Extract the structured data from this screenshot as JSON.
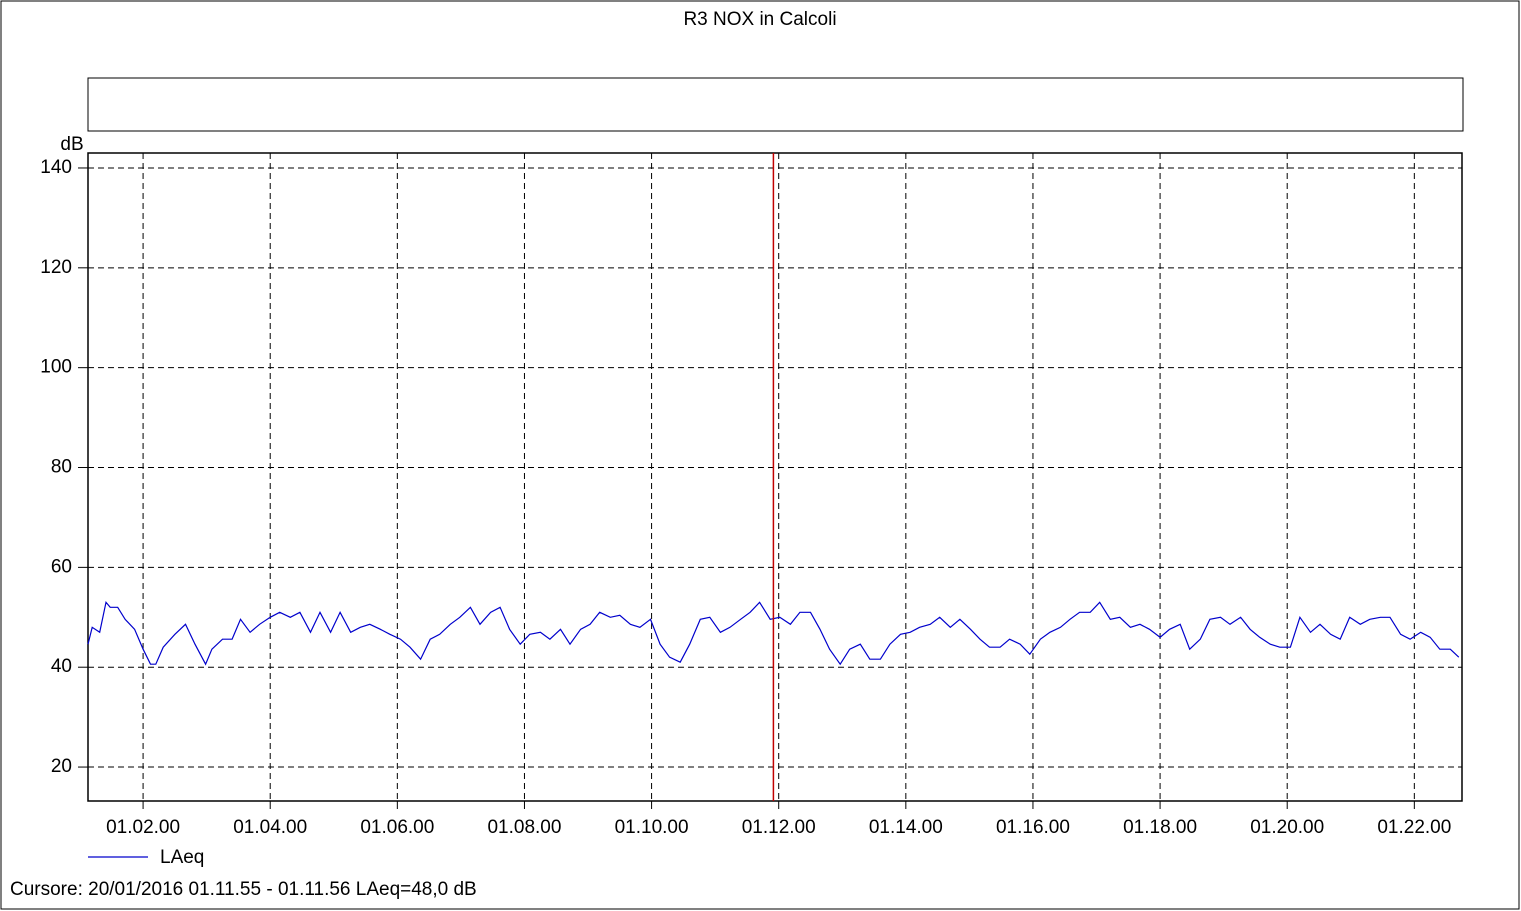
{
  "chart_data": {
    "type": "line",
    "title": "R3 NOX in Calcoli",
    "ylabel": "dB",
    "cursor_text": "Cursore: 20/01/2016 01.11.55 - 01.11.56  LAeq=48,0 dB",
    "cursor_x": 4315,
    "cursor_color": "#c00000",
    "xlim": [
      3668,
      4965
    ],
    "ylim": [
      13.2,
      143
    ],
    "xticks": [
      {
        "value": 3720,
        "label": "01.02.00"
      },
      {
        "value": 3840,
        "label": "01.04.00"
      },
      {
        "value": 3960,
        "label": "01.06.00"
      },
      {
        "value": 4080,
        "label": "01.08.00"
      },
      {
        "value": 4200,
        "label": "01.10.00"
      },
      {
        "value": 4320,
        "label": "01.12.00"
      },
      {
        "value": 4440,
        "label": "01.14.00"
      },
      {
        "value": 4560,
        "label": "01.16.00"
      },
      {
        "value": 4680,
        "label": "01.18.00"
      },
      {
        "value": 4800,
        "label": "01.20.00"
      },
      {
        "value": 4920,
        "label": "01.22.00"
      }
    ],
    "yticks": [
      20,
      40,
      60,
      80,
      100,
      120,
      140
    ],
    "grid": true,
    "x": [
      3668,
      3672,
      3679,
      3685,
      3689,
      3696,
      3703,
      3712,
      3720,
      3727,
      3732,
      3739,
      3750,
      3760,
      3769,
      3779,
      3785,
      3795,
      3804,
      3812,
      3821,
      3830,
      3840,
      3849,
      3859,
      3868,
      3878,
      3887,
      3897,
      3906,
      3916,
      3925,
      3934,
      3944,
      3953,
      3963,
      3972,
      3982,
      3991,
      4000,
      4010,
      4019,
      4029,
      4038,
      4048,
      4057,
      4066,
      4076,
      4085,
      4095,
      4104,
      4114,
      4123,
      4133,
      4142,
      4151,
      4161,
      4170,
      4180,
      4189,
      4199,
      4208,
      4217,
      4227,
      4236,
      4246,
      4255,
      4265,
      4274,
      4284,
      4293,
      4302,
      4312,
      4321,
      4331,
      4340,
      4350,
      4359,
      4368,
      4378,
      4387,
      4397,
      4406,
      4416,
      4425,
      4435,
      4444,
      4453,
      4463,
      4472,
      4482,
      4491,
      4501,
      4510,
      4519,
      4529,
      4538,
      4548,
      4557,
      4567,
      4576,
      4586,
      4595,
      4604,
      4614,
      4623,
      4633,
      4642,
      4652,
      4661,
      4670,
      4680,
      4689,
      4699,
      4708,
      4718,
      4727,
      4737,
      4746,
      4756,
      4765,
      4774,
      4784,
      4793,
      4803,
      4812,
      4822,
      4831,
      4841,
      4850,
      4859,
      4869,
      4878,
      4888,
      4897,
      4907,
      4916,
      4926,
      4935,
      4944,
      4954,
      4962
    ],
    "series": [
      {
        "name": "LAeq",
        "color": "#0000cc",
        "values": [
          44.6,
          48,
          47,
          53,
          52,
          52,
          49.6,
          47.6,
          43.6,
          40.6,
          40.6,
          44,
          46.6,
          48.6,
          44.6,
          40.6,
          43.6,
          45.6,
          45.6,
          49.6,
          47,
          48.6,
          50,
          51,
          50,
          51,
          47,
          51,
          47,
          51,
          47,
          48,
          48.6,
          47.6,
          46.6,
          45.6,
          44,
          41.6,
          45.6,
          46.6,
          48.6,
          50,
          52,
          48.6,
          51,
          52,
          47.6,
          44.6,
          46.6,
          47,
          45.6,
          47.6,
          44.6,
          47.6,
          48.6,
          51,
          50,
          50.4,
          48.6,
          48,
          49.6,
          44.6,
          42,
          41,
          44.6,
          49.6,
          50,
          47,
          48,
          49.6,
          51,
          53,
          49.6,
          50,
          48.6,
          51,
          51,
          47.6,
          43.6,
          40.6,
          43.6,
          44.6,
          41.6,
          41.6,
          44.6,
          46.6,
          47,
          48,
          48.6,
          50,
          48,
          49.6,
          47.6,
          45.6,
          44,
          44,
          45.6,
          44.6,
          42.6,
          45.6,
          47,
          48,
          49.6,
          51,
          51,
          53,
          49.6,
          50,
          48,
          48.6,
          47.6,
          46,
          47.6,
          48.6,
          43.6,
          45.6,
          49.6,
          50,
          48.6,
          50,
          47.6,
          46,
          44.6,
          44,
          44,
          50,
          47,
          48.6,
          46.6,
          45.6,
          50,
          48.6,
          49.6,
          50,
          50,
          46.6,
          45.6,
          47,
          46,
          43.6,
          43.6,
          42
        ]
      }
    ]
  }
}
